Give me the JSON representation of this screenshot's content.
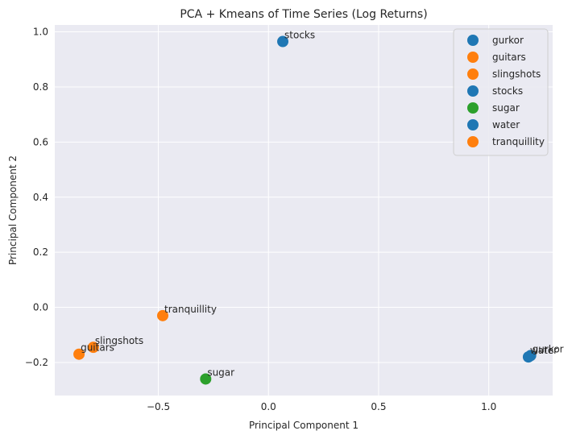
{
  "chart_data": {
    "type": "scatter",
    "title": "PCA + Kmeans of Time Series (Log Returns)",
    "xlabel": "Principal Component 1",
    "ylabel": "Principal Component 2",
    "xlim": [
      -0.97,
      1.29
    ],
    "ylim": [
      -0.32,
      1.025
    ],
    "xticks": [
      -0.5,
      0.0,
      0.5,
      1.0
    ],
    "xtick_labels": [
      "−0.5",
      "0.0",
      "0.5",
      "1.0"
    ],
    "yticks": [
      -0.2,
      0.0,
      0.2,
      0.4,
      0.6,
      0.8,
      1.0
    ],
    "ytick_labels": [
      "−0.2",
      "0.0",
      "0.2",
      "0.4",
      "0.6",
      "0.8",
      "1.0"
    ],
    "grid": true,
    "legend_position": "top-right",
    "series": [
      {
        "name": "gurkor",
        "x": 1.19,
        "y": -0.175,
        "color": "#1f77b4"
      },
      {
        "name": "guitars",
        "x": -0.86,
        "y": -0.17,
        "color": "#ff7f0e"
      },
      {
        "name": "slingshots",
        "x": -0.795,
        "y": -0.145,
        "color": "#ff7f0e"
      },
      {
        "name": "stocks",
        "x": 0.065,
        "y": 0.965,
        "color": "#1f77b4"
      },
      {
        "name": "sugar",
        "x": -0.285,
        "y": -0.26,
        "color": "#2ca02c"
      },
      {
        "name": "water",
        "x": 1.18,
        "y": -0.18,
        "color": "#1f77b4"
      },
      {
        "name": "tranquillity",
        "x": -0.48,
        "y": -0.03,
        "color": "#ff7f0e"
      }
    ]
  }
}
